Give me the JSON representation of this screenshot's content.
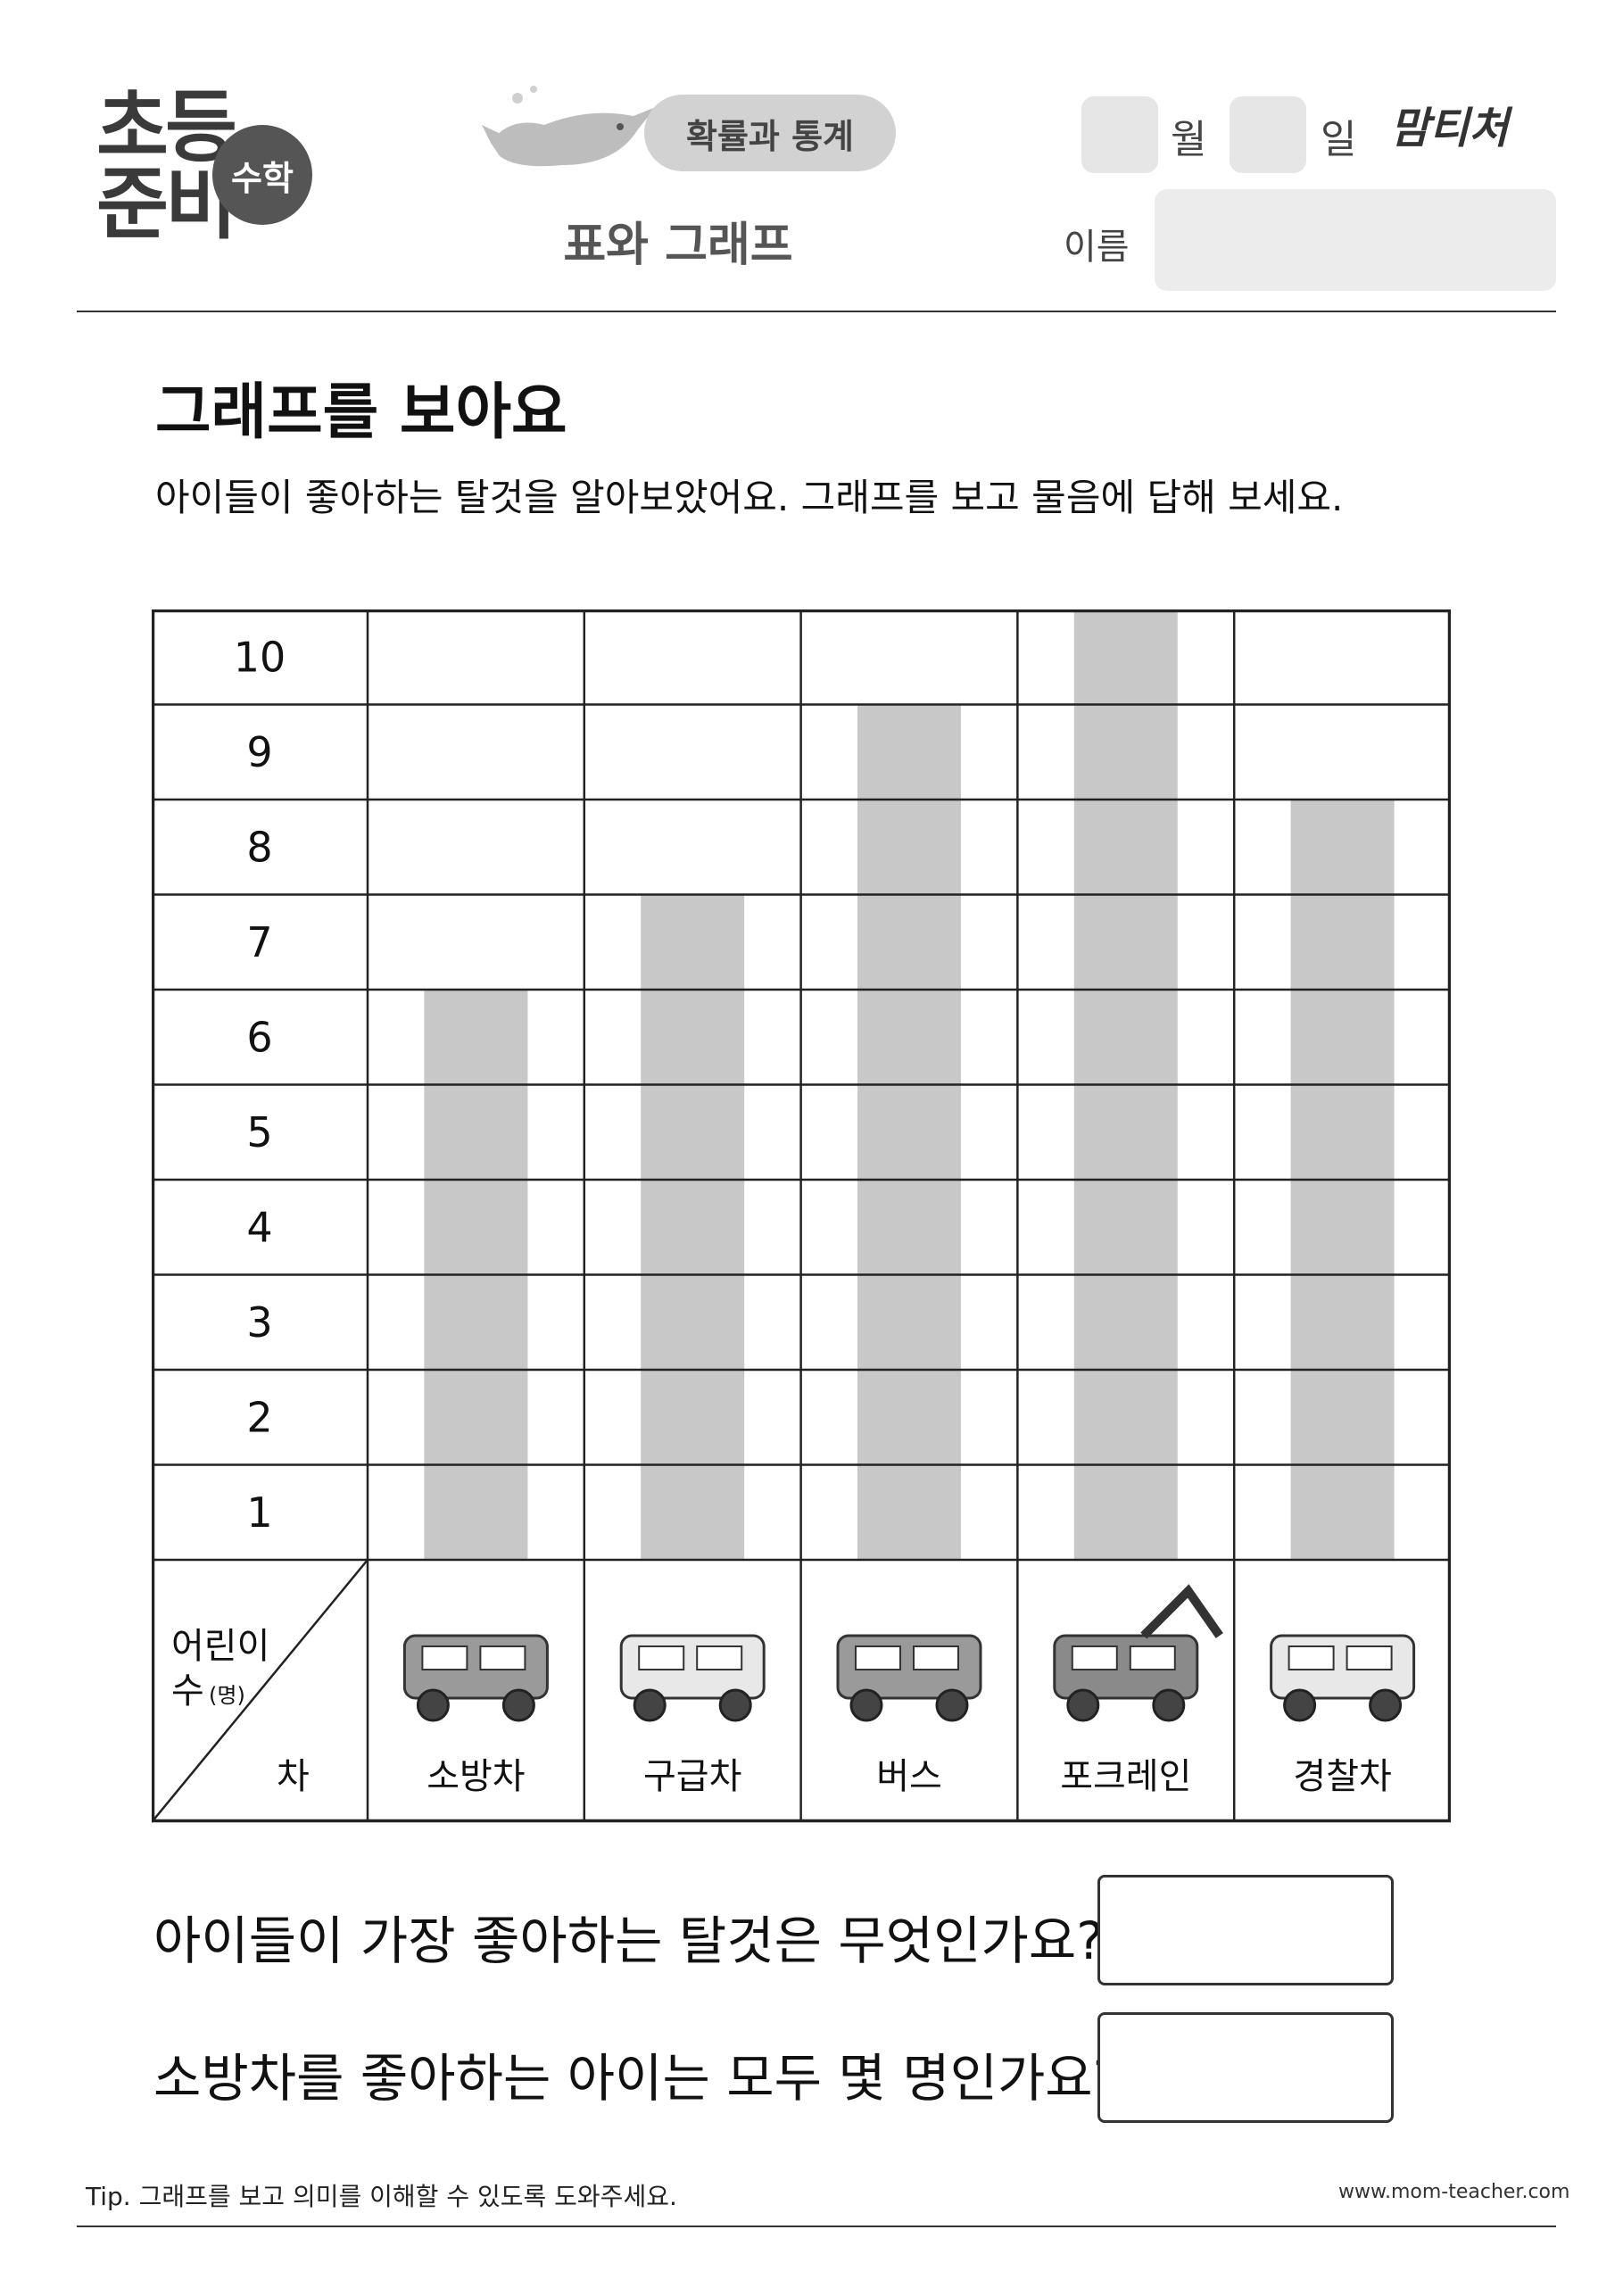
{
  "header": {
    "logo_text": "초등\n준비",
    "logo_badge": "수학",
    "topic": "확률과 통계",
    "subtitle": "표와 그래프",
    "month_label": "월",
    "day_label": "일",
    "brand": "맘티처",
    "name_label": "이름"
  },
  "worksheet": {
    "heading": "그래프를 보아요",
    "instruction": "아이들이 좋아하는 탈것을 알아보았어요. 그래프를 보고 물음에 답해 보세요."
  },
  "chart_data": {
    "type": "bar",
    "categories": [
      "소방차",
      "구급차",
      "버스",
      "포크레인",
      "경찰차"
    ],
    "values": [
      6,
      7,
      9,
      10,
      8
    ],
    "y_ticks": [
      "1",
      "2",
      "3",
      "4",
      "5",
      "6",
      "7",
      "8",
      "9",
      "10"
    ],
    "ylim": [
      0,
      10
    ],
    "corner_top": "어린이",
    "corner_mid": "수",
    "corner_unit": "(명)",
    "corner_bottom": "차",
    "bar_color": "#c8c8c8",
    "grid": true,
    "vehicle_icons": [
      "fire-truck-icon",
      "ambulance-icon",
      "bus-icon",
      "excavator-icon",
      "police-car-icon"
    ]
  },
  "questions": [
    "아이들이 가장 좋아하는 탈것은 무엇인가요?",
    "소방차를 좋아하는 아이는 모두 몇 명인가요?"
  ],
  "footer": {
    "tip": "Tip. 그래프를 보고 의미를 이해할 수 있도록 도와주세요.",
    "site": "www.mom-teacher.com"
  }
}
